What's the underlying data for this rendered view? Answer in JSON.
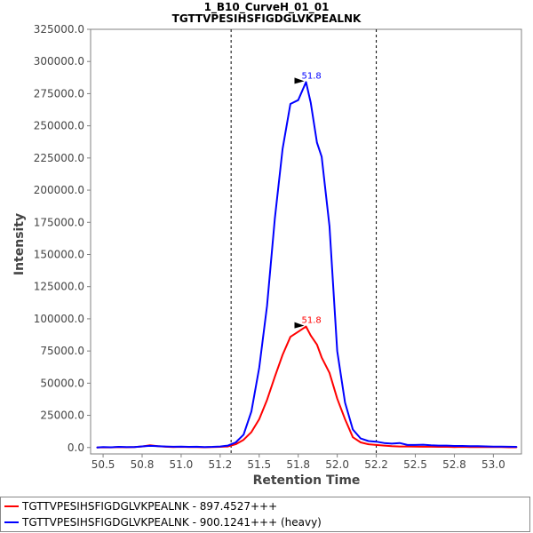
{
  "chart_data": {
    "type": "line",
    "title": "1_B10_CurveH_01_01",
    "subtitle": "TGTTVPESIHSFIGDGLVKPEALNK",
    "xlabel": "Retention Time",
    "ylabel": "Intensity",
    "xlim": [
      50.42,
      53.18
    ],
    "ylim": [
      -5000,
      325000
    ],
    "x_ticks": [
      "50.5",
      "50.8",
      "51.0",
      "51.2",
      "51.5",
      "51.8",
      "52.0",
      "52.2",
      "52.5",
      "52.8",
      "53.0"
    ],
    "x_tick_values": [
      50.5,
      50.75,
      51.0,
      51.25,
      51.5,
      51.75,
      52.0,
      52.25,
      52.5,
      52.75,
      53.0
    ],
    "y_ticks": [
      "0.0",
      "25000.0",
      "50000.0",
      "75000.0",
      "100000.0",
      "125000.0",
      "150000.0",
      "175000.0",
      "200000.0",
      "225000.0",
      "250000.0",
      "275000.0",
      "300000.0",
      "325000.0"
    ],
    "y_tick_values": [
      0,
      25000,
      50000,
      75000,
      100000,
      125000,
      150000,
      175000,
      200000,
      225000,
      250000,
      275000,
      300000,
      325000
    ],
    "vlines": [
      51.32,
      52.25
    ],
    "legend_position": "bottom",
    "series": [
      {
        "name": "TGTTVPESIHSFIGDGLVKPEALNK - 897.4527+++",
        "color": "#ff0000",
        "peak_label": "51.8",
        "x": [
          50.46,
          50.5,
          50.55,
          50.6,
          50.65,
          50.7,
          50.75,
          50.8,
          50.85,
          50.9,
          50.95,
          51.0,
          51.05,
          51.1,
          51.15,
          51.2,
          51.25,
          51.3,
          51.35,
          51.4,
          51.45,
          51.5,
          51.55,
          51.6,
          51.65,
          51.7,
          51.75,
          51.8,
          51.83,
          51.87,
          51.9,
          51.95,
          52.0,
          52.05,
          52.1,
          52.15,
          52.2,
          52.25,
          52.3,
          52.35,
          52.4,
          52.45,
          52.5,
          52.55,
          52.6,
          52.65,
          52.7,
          52.75,
          52.8,
          52.85,
          52.9,
          52.95,
          53.0,
          53.05,
          53.1,
          53.15
        ],
        "y": [
          0,
          200,
          100,
          300,
          200,
          300,
          800,
          1800,
          1000,
          600,
          400,
          500,
          300,
          400,
          200,
          300,
          500,
          800,
          2500,
          6000,
          12000,
          22000,
          37000,
          55000,
          72000,
          86000,
          90000,
          94000,
          87000,
          80000,
          70000,
          58000,
          38000,
          22000,
          8000,
          4000,
          2500,
          2000,
          1500,
          1000,
          800,
          800,
          700,
          600,
          600,
          500,
          500,
          400,
          500,
          400,
          300,
          400,
          300,
          300,
          200,
          200
        ]
      },
      {
        "name": "TGTTVPESIHSFIGDGLVKPEALNK - 900.1241+++ (heavy)",
        "color": "#0000ff",
        "peak_label": "51.8",
        "x": [
          50.46,
          50.5,
          50.55,
          50.6,
          50.65,
          50.7,
          50.75,
          50.8,
          50.85,
          50.9,
          50.95,
          51.0,
          51.05,
          51.1,
          51.15,
          51.2,
          51.25,
          51.3,
          51.35,
          51.4,
          51.45,
          51.5,
          51.55,
          51.6,
          51.65,
          51.7,
          51.75,
          51.8,
          51.83,
          51.87,
          51.9,
          51.95,
          52.0,
          52.05,
          52.1,
          52.15,
          52.2,
          52.25,
          52.3,
          52.35,
          52.4,
          52.45,
          52.5,
          52.55,
          52.6,
          52.65,
          52.7,
          52.75,
          52.8,
          52.85,
          52.9,
          52.95,
          53.0,
          53.05,
          53.1,
          53.15
        ],
        "y": [
          0,
          300,
          200,
          500,
          300,
          400,
          900,
          1300,
          1100,
          800,
          600,
          700,
          500,
          600,
          400,
          500,
          800,
          1500,
          4000,
          10000,
          28000,
          62000,
          110000,
          178000,
          232000,
          267000,
          270000,
          284000,
          268000,
          237000,
          226000,
          172000,
          75000,
          35000,
          14000,
          7000,
          5000,
          4500,
          3500,
          3000,
          3500,
          2000,
          2000,
          2200,
          1800,
          1500,
          1500,
          1200,
          1200,
          1000,
          1100,
          900,
          700,
          700,
          600,
          500
        ]
      }
    ]
  }
}
